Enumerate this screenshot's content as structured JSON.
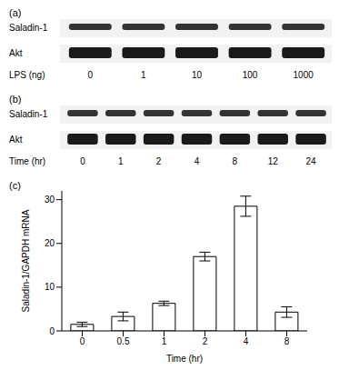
{
  "chart_data": {
    "type": "bar",
    "title": "(c)",
    "categories": [
      "0",
      "0.5",
      "1",
      "2",
      "4",
      "8"
    ],
    "values": [
      1.5,
      3.3,
      6.3,
      17,
      28.5,
      4.3
    ],
    "error": [
      0.5,
      1.0,
      0.5,
      1.0,
      2.3,
      1.2
    ],
    "color": "#ffffff",
    "xlabel": "Time (hr)",
    "ylabel": "Saladin-1/GAPDH mRNA",
    "ylim": [
      0,
      32
    ],
    "yticks": [
      0,
      10,
      20,
      30
    ],
    "grid": false
  },
  "blots": [
    {
      "title": "(a)",
      "rows": [
        "Saladin-1",
        "Akt"
      ],
      "lane_label": "LPS (ng)",
      "lanes": [
        0,
        1,
        10,
        100,
        1000
      ]
    },
    {
      "title": "(b)",
      "rows": [
        "Saladin-1",
        "Akt"
      ],
      "lane_label": "Time (hr)",
      "lanes": [
        0,
        1,
        2,
        4,
        8,
        12,
        24
      ]
    }
  ]
}
